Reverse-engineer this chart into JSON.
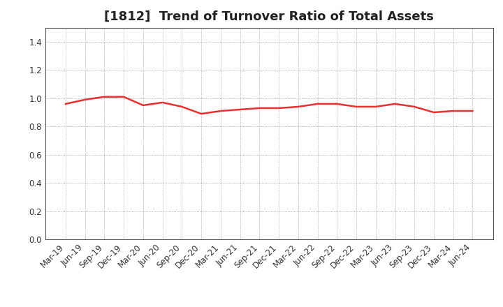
{
  "title": "[1812]  Trend of Turnover Ratio of Total Assets",
  "x_labels": [
    "Mar-19",
    "Jun-19",
    "Sep-19",
    "Dec-19",
    "Mar-20",
    "Jun-20",
    "Sep-20",
    "Dec-20",
    "Mar-21",
    "Jun-21",
    "Sep-21",
    "Dec-21",
    "Mar-22",
    "Jun-22",
    "Sep-22",
    "Dec-22",
    "Mar-23",
    "Jun-23",
    "Sep-23",
    "Dec-23",
    "Mar-24",
    "Jun-24"
  ],
  "values": [
    0.96,
    0.99,
    1.01,
    1.01,
    0.95,
    0.97,
    0.94,
    0.89,
    0.91,
    0.92,
    0.93,
    0.93,
    0.94,
    0.96,
    0.96,
    0.94,
    0.94,
    0.96,
    0.94,
    0.9,
    0.91,
    0.91
  ],
  "line_color": "#e83030",
  "line_width": 1.8,
  "ylim": [
    0.0,
    1.5
  ],
  "yticks": [
    0.0,
    0.2,
    0.4,
    0.6,
    0.8,
    1.0,
    1.2,
    1.4
  ],
  "background_color": "#ffffff",
  "grid_color": "#999999",
  "title_fontsize": 13,
  "tick_fontsize": 8.5,
  "title_color": "#222222",
  "spine_color": "#555555"
}
